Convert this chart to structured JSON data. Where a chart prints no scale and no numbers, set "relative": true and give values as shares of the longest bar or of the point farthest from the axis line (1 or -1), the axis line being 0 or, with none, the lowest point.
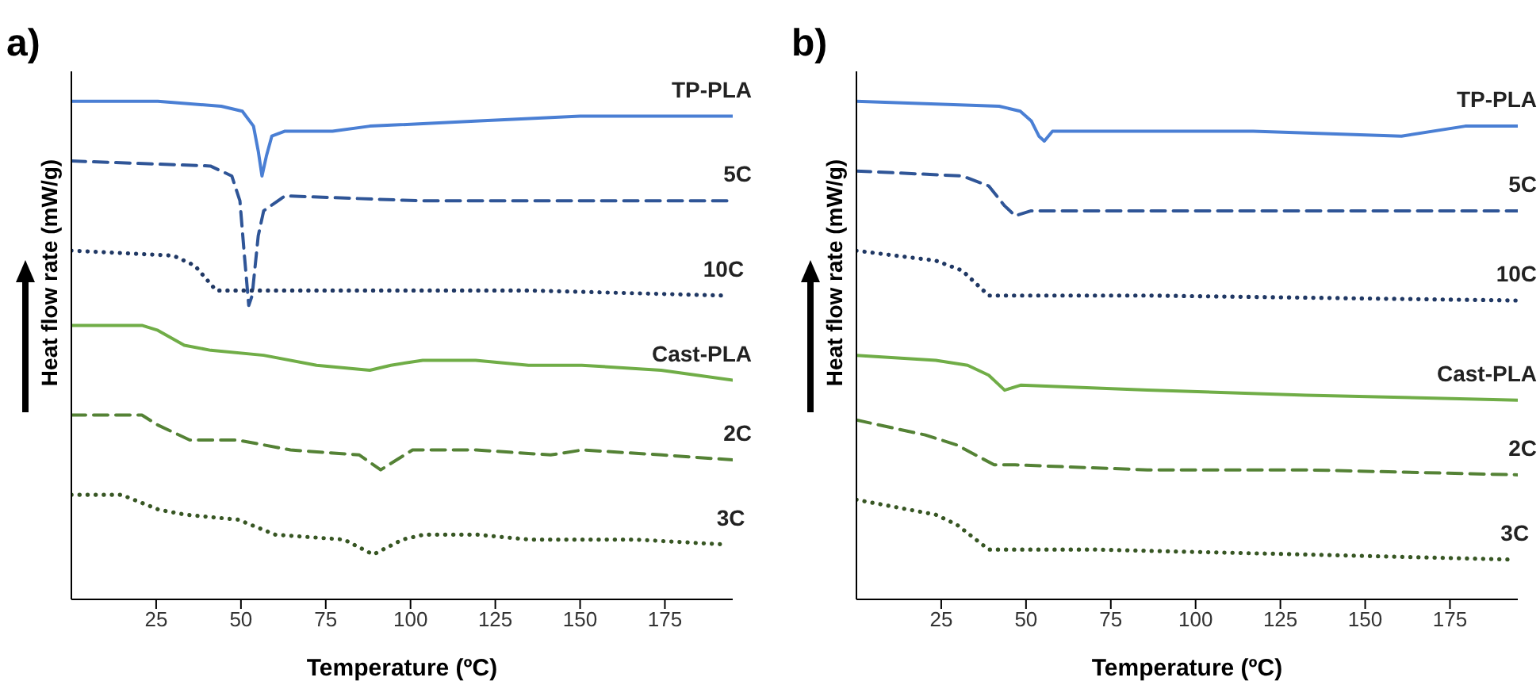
{
  "chart_data": [
    {
      "type": "line",
      "title": "a)",
      "xlabel": "Temperature (ºC)",
      "ylabel": "Heat flow rate (mW/g)",
      "relative": true,
      "legend": false,
      "marker": "none",
      "xlim": [
        0,
        195
      ],
      "xticks": [
        25,
        50,
        75,
        100,
        125,
        150,
        175
      ],
      "series": [
        {
          "name": "TP-PLA",
          "color": "#4a7fd4",
          "line_style": "solid",
          "x": [
            0,
            25.5,
            44.2,
            50.4,
            53.7,
            55.1,
            56.2,
            57.5,
            59.1,
            63,
            77,
            88,
            119,
            150,
            195
          ],
          "values": [
            1.0,
            1.0,
            0.99,
            0.98,
            0.95,
            0.9,
            0.85,
            0.89,
            0.93,
            0.94,
            0.94,
            0.95,
            0.96,
            0.97,
            0.97
          ]
        },
        {
          "name": "5C",
          "color": "#2f5597",
          "line_style": "dashed",
          "x": [
            0,
            41,
            47.3,
            49.7,
            50.9,
            52.3,
            53.3,
            55.1,
            56.7,
            63,
            103.6,
            195
          ],
          "values": [
            0.88,
            0.87,
            0.85,
            0.8,
            0.7,
            0.59,
            0.61,
            0.73,
            0.78,
            0.81,
            0.8,
            0.8
          ]
        },
        {
          "name": "10C",
          "color": "#203864",
          "line_style": "dotted",
          "x": [
            0,
            30.1,
            36.4,
            42.7,
            72.3,
            134.8,
            192.7
          ],
          "values": [
            0.7,
            0.69,
            0.67,
            0.62,
            0.62,
            0.62,
            0.61
          ]
        },
        {
          "name": "Cast-PLA",
          "color": "#70ad47",
          "line_style": "solid",
          "x": [
            0,
            20.8,
            25.5,
            33.3,
            41.1,
            56.7,
            72.3,
            88,
            94.2,
            103.6,
            119.2,
            134.8,
            141.9,
            150.5,
            173.9,
            195
          ],
          "values": [
            0.55,
            0.55,
            0.54,
            0.51,
            0.5,
            0.49,
            0.47,
            0.46,
            0.47,
            0.48,
            0.48,
            0.47,
            0.47,
            0.47,
            0.46,
            0.44
          ]
        },
        {
          "name": "2C",
          "color": "#548235",
          "line_style": "dashed",
          "x": [
            0,
            20.8,
            25.5,
            34.9,
            49,
            64.6,
            84.9,
            91.2,
            100.6,
            119.4,
            141.3,
            150.7,
            174.1,
            195
          ],
          "values": [
            0.37,
            0.37,
            0.35,
            0.32,
            0.32,
            0.3,
            0.29,
            0.26,
            0.3,
            0.3,
            0.29,
            0.3,
            0.29,
            0.28
          ]
        },
        {
          "name": "3C",
          "color": "#375623",
          "line_style": "dotted",
          "x": [
            0,
            14.8,
            25.8,
            33.6,
            49.2,
            60.1,
            80.4,
            89,
            97.6,
            103.9,
            119.5,
            135.1,
            166.4,
            193
          ],
          "values": [
            0.21,
            0.21,
            0.18,
            0.17,
            0.16,
            0.13,
            0.12,
            0.09,
            0.12,
            0.13,
            0.13,
            0.12,
            0.12,
            0.11
          ]
        }
      ]
    },
    {
      "type": "line",
      "title": "b)",
      "xlabel": "Temperature (ºC)",
      "ylabel": "Heat flow rate (mW/g)",
      "relative": true,
      "legend": false,
      "marker": "none",
      "xlim": [
        0,
        195
      ],
      "xticks": [
        25,
        50,
        75,
        100,
        125,
        150,
        175
      ],
      "series": [
        {
          "name": "TP-PLA",
          "color": "#4a7fd4",
          "line_style": "solid",
          "x": [
            0,
            42.1,
            48.3,
            51.6,
            53.8,
            55.4,
            57.8,
            85.9,
            117,
            160.7,
            179.5,
            195
          ],
          "values": [
            1.0,
            0.99,
            0.98,
            0.96,
            0.93,
            0.92,
            0.94,
            0.94,
            0.94,
            0.93,
            0.95,
            0.95
          ]
        },
        {
          "name": "5C",
          "color": "#2f5597",
          "line_style": "dashed",
          "x": [
            0,
            31.2,
            39,
            43.7,
            46.8,
            51.5,
            101.4,
            148.2,
            179.5,
            195
          ],
          "values": [
            0.86,
            0.85,
            0.83,
            0.79,
            0.77,
            0.78,
            0.78,
            0.78,
            0.78,
            0.78
          ]
        },
        {
          "name": "10C",
          "color": "#203864",
          "line_style": "dotted",
          "x": [
            0,
            23.4,
            31.2,
            39,
            85.8,
            195
          ],
          "values": [
            0.7,
            0.68,
            0.66,
            0.61,
            0.61,
            0.6
          ]
        },
        {
          "name": "Cast-PLA",
          "color": "#70ad47",
          "line_style": "solid",
          "x": [
            0,
            23.4,
            32.8,
            39,
            43.7,
            48.4,
            85.8,
            132.6,
            195
          ],
          "values": [
            0.49,
            0.48,
            0.47,
            0.45,
            0.42,
            0.43,
            0.42,
            0.41,
            0.4
          ]
        },
        {
          "name": "2C",
          "color": "#548235",
          "line_style": "dashed",
          "x": [
            0,
            20.3,
            29.6,
            40.6,
            46.8,
            85.8,
            132.6,
            195
          ],
          "values": [
            0.36,
            0.33,
            0.31,
            0.27,
            0.27,
            0.26,
            0.26,
            0.25
          ]
        },
        {
          "name": "3C",
          "color": "#375623",
          "line_style": "dotted",
          "x": [
            0,
            23.4,
            29.6,
            39,
            70.2,
            132.6,
            192.7
          ],
          "values": [
            0.2,
            0.17,
            0.15,
            0.1,
            0.1,
            0.09,
            0.08
          ]
        }
      ]
    }
  ]
}
